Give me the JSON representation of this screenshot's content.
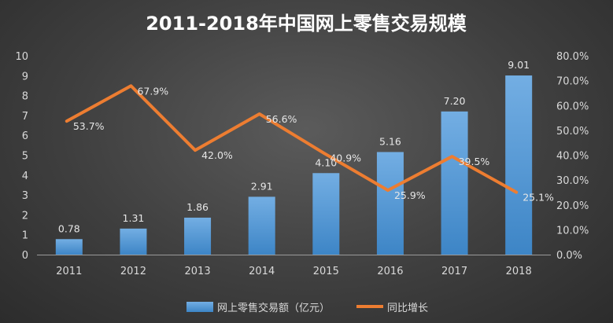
{
  "chart_data": {
    "type": "bar+line",
    "title": "2011-2018年中国网上零售交易规模",
    "categories": [
      "2011",
      "2012",
      "2013",
      "2014",
      "2015",
      "2016",
      "2017",
      "2018"
    ],
    "series": [
      {
        "name": "网上零售交易额（亿元）",
        "type": "bar",
        "axis": "left",
        "values": [
          0.78,
          1.31,
          1.86,
          2.91,
          4.1,
          5.16,
          7.2,
          9.01
        ],
        "labels": [
          "0.78",
          "1.31",
          "1.86",
          "2.91",
          "4.10",
          "5.16",
          "7.20",
          "9.01"
        ],
        "color": "#5b9bd5"
      },
      {
        "name": "同比增长",
        "type": "line",
        "axis": "right",
        "values": [
          53.7,
          67.9,
          42.0,
          56.6,
          40.9,
          25.9,
          39.5,
          25.1
        ],
        "labels": [
          "53.7%",
          "67.9%",
          "42.0%",
          "56.6%",
          "40.9%",
          "25.9%",
          "39.5%",
          "25.1%"
        ],
        "color": "#ed7d31"
      }
    ],
    "y_left": {
      "min": 0,
      "max": 10,
      "step": 1,
      "ticks": [
        "0",
        "1",
        "2",
        "3",
        "4",
        "5",
        "6",
        "7",
        "8",
        "9",
        "10"
      ]
    },
    "y_right": {
      "min": 0,
      "max": 80,
      "step": 10,
      "ticks": [
        "0.0%",
        "10.0%",
        "20.0%",
        "30.0%",
        "40.0%",
        "50.0%",
        "60.0%",
        "70.0%",
        "80.0%"
      ]
    },
    "grid": false,
    "legend_position": "bottom"
  }
}
